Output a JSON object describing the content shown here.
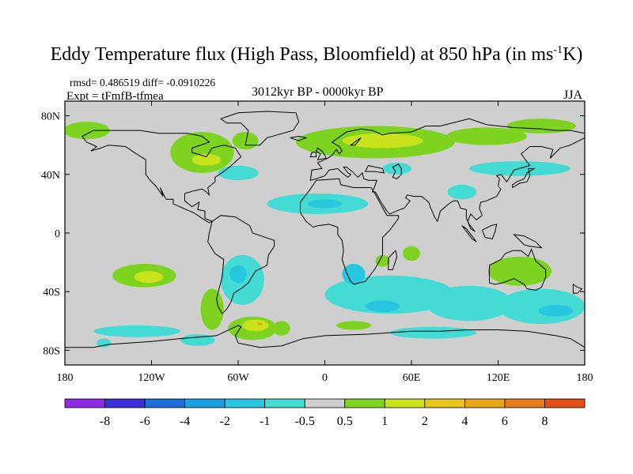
{
  "chart_data": {
    "type": "heatmap",
    "title_main": "Eddy Temperature flux (High Pass, Bloomfield) at 850 hPa (in ms",
    "title_sup": "-1",
    "title_end": "K)",
    "stats": "rmsd= 0.486519  diff= -0.0910226",
    "expt": "Expt = tFmfB-tfmea",
    "period": "3012kyr BP - 0000kyr BP",
    "season": "JJA",
    "xlim": [
      -180,
      180
    ],
    "ylim": [
      -90,
      90
    ],
    "x_ticks": [
      {
        "value": -180,
        "label": "180"
      },
      {
        "value": -120,
        "label": "120W"
      },
      {
        "value": -60,
        "label": "60W"
      },
      {
        "value": 0,
        "label": "0"
      },
      {
        "value": 60,
        "label": "60E"
      },
      {
        "value": 120,
        "label": "120E"
      },
      {
        "value": 180,
        "label": "180"
      }
    ],
    "y_ticks": [
      {
        "value": 80,
        "label": "80N"
      },
      {
        "value": 40,
        "label": "40N"
      },
      {
        "value": 0,
        "label": "0"
      },
      {
        "value": -40,
        "label": "40S"
      },
      {
        "value": -80,
        "label": "80S"
      }
    ],
    "colorbar": {
      "colors": [
        "#8e2be6",
        "#3a2fd9",
        "#1f6fd8",
        "#1ba0e3",
        "#29c7df",
        "#44dbd5",
        "#cfcfcf",
        "#7ed321",
        "#c8e31c",
        "#e8c51a",
        "#e8a619",
        "#e87b1b",
        "#e54e15"
      ],
      "labels": [
        "-8",
        "-6",
        "-4",
        "-2",
        "-1",
        "-0.5",
        "0.5",
        "1",
        "2",
        "4",
        "6",
        "8"
      ]
    },
    "field": {
      "background_color": "#cfcfcf",
      "regions": [
        {
          "level": 1,
          "lon": -165,
          "lat": 70,
          "rlon": 16,
          "rlat": 6
        },
        {
          "level": 1,
          "lon": -85,
          "lat": 55,
          "rlon": 22,
          "rlat": 14
        },
        {
          "level": 1,
          "lon": -55,
          "lat": 63,
          "rlon": 9,
          "rlat": 6
        },
        {
          "level": 2,
          "lon": -82,
          "lat": 50,
          "rlon": 10,
          "rlat": 4
        },
        {
          "level": -1,
          "lon": -60,
          "lat": 41,
          "rlon": 14,
          "rlat": 5
        },
        {
          "level": 1,
          "lon": 35,
          "lat": 62,
          "rlon": 55,
          "rlat": 11
        },
        {
          "level": 2,
          "lon": 40,
          "lat": 63,
          "rlon": 28,
          "rlat": 5
        },
        {
          "level": 1,
          "lon": 112,
          "lat": 66,
          "rlon": 28,
          "rlat": 6
        },
        {
          "level": 1,
          "lon": 150,
          "lat": 73,
          "rlon": 24,
          "rlat": 5
        },
        {
          "level": -1,
          "lon": 50,
          "lat": 44,
          "rlon": 10,
          "rlat": 4
        },
        {
          "level": -1,
          "lon": 135,
          "lat": 44,
          "rlon": 35,
          "rlat": 5
        },
        {
          "level": -1,
          "lon": 95,
          "lat": 28,
          "rlon": 10,
          "rlat": 5
        },
        {
          "level": -1,
          "lon": -5,
          "lat": 20,
          "rlon": 35,
          "rlat": 7
        },
        {
          "level": -2,
          "lon": 0,
          "lat": 20,
          "rlon": 12,
          "rlat": 3
        },
        {
          "level": 1,
          "lon": -125,
          "lat": -29,
          "rlon": 22,
          "rlat": 8
        },
        {
          "level": 2,
          "lon": -122,
          "lat": -30,
          "rlon": 10,
          "rlat": 4
        },
        {
          "level": 1,
          "lon": -78,
          "lat": -52,
          "rlon": 8,
          "rlat": 14
        },
        {
          "level": -1,
          "lon": -57,
          "lat": -32,
          "rlon": 15,
          "rlat": 17
        },
        {
          "level": -2,
          "lon": -60,
          "lat": -28,
          "rlon": 6,
          "rlat": 6
        },
        {
          "level": 1,
          "lon": -50,
          "lat": -65,
          "rlon": 17,
          "rlat": 8
        },
        {
          "level": 2,
          "lon": -48,
          "lat": -63,
          "rlon": 9,
          "rlat": 4
        },
        {
          "level": 4,
          "lon": -45,
          "lat": -62,
          "rlon": 2,
          "rlat": 1
        },
        {
          "level": 1,
          "lon": -30,
          "lat": -65,
          "rlon": 6,
          "rlat": 5
        },
        {
          "level": -1,
          "lon": -130,
          "lat": -67,
          "rlon": 30,
          "rlat": 4
        },
        {
          "level": -1,
          "lon": -88,
          "lat": -73,
          "rlon": 12,
          "rlat": 4
        },
        {
          "level": -1,
          "lon": 45,
          "lat": -42,
          "rlon": 45,
          "rlat": 13
        },
        {
          "level": -2,
          "lon": 20,
          "lat": -28,
          "rlon": 8,
          "rlat": 7
        },
        {
          "level": -2,
          "lon": 40,
          "lat": -50,
          "rlon": 12,
          "rlat": 4
        },
        {
          "level": -1,
          "lon": 100,
          "lat": -48,
          "rlon": 30,
          "rlat": 12
        },
        {
          "level": -1,
          "lon": 150,
          "lat": -50,
          "rlon": 30,
          "rlat": 12
        },
        {
          "level": -2,
          "lon": 160,
          "lat": -53,
          "rlon": 12,
          "rlat": 4
        },
        {
          "level": -1,
          "lon": 75,
          "lat": -68,
          "rlon": 30,
          "rlat": 4
        },
        {
          "level": 1,
          "lon": 20,
          "lat": -63,
          "rlon": 12,
          "rlat": 3
        },
        {
          "level": 1,
          "lon": 135,
          "lat": -26,
          "rlon": 22,
          "rlat": 10
        },
        {
          "level": 1,
          "lon": 60,
          "lat": -14,
          "rlon": 6,
          "rlat": 5
        },
        {
          "level": 1,
          "lon": 40,
          "lat": -19,
          "rlon": 5,
          "rlat": 4
        },
        {
          "level": -1,
          "lon": -153,
          "lat": -75,
          "rlon": 5,
          "rlat": 3
        }
      ]
    }
  }
}
